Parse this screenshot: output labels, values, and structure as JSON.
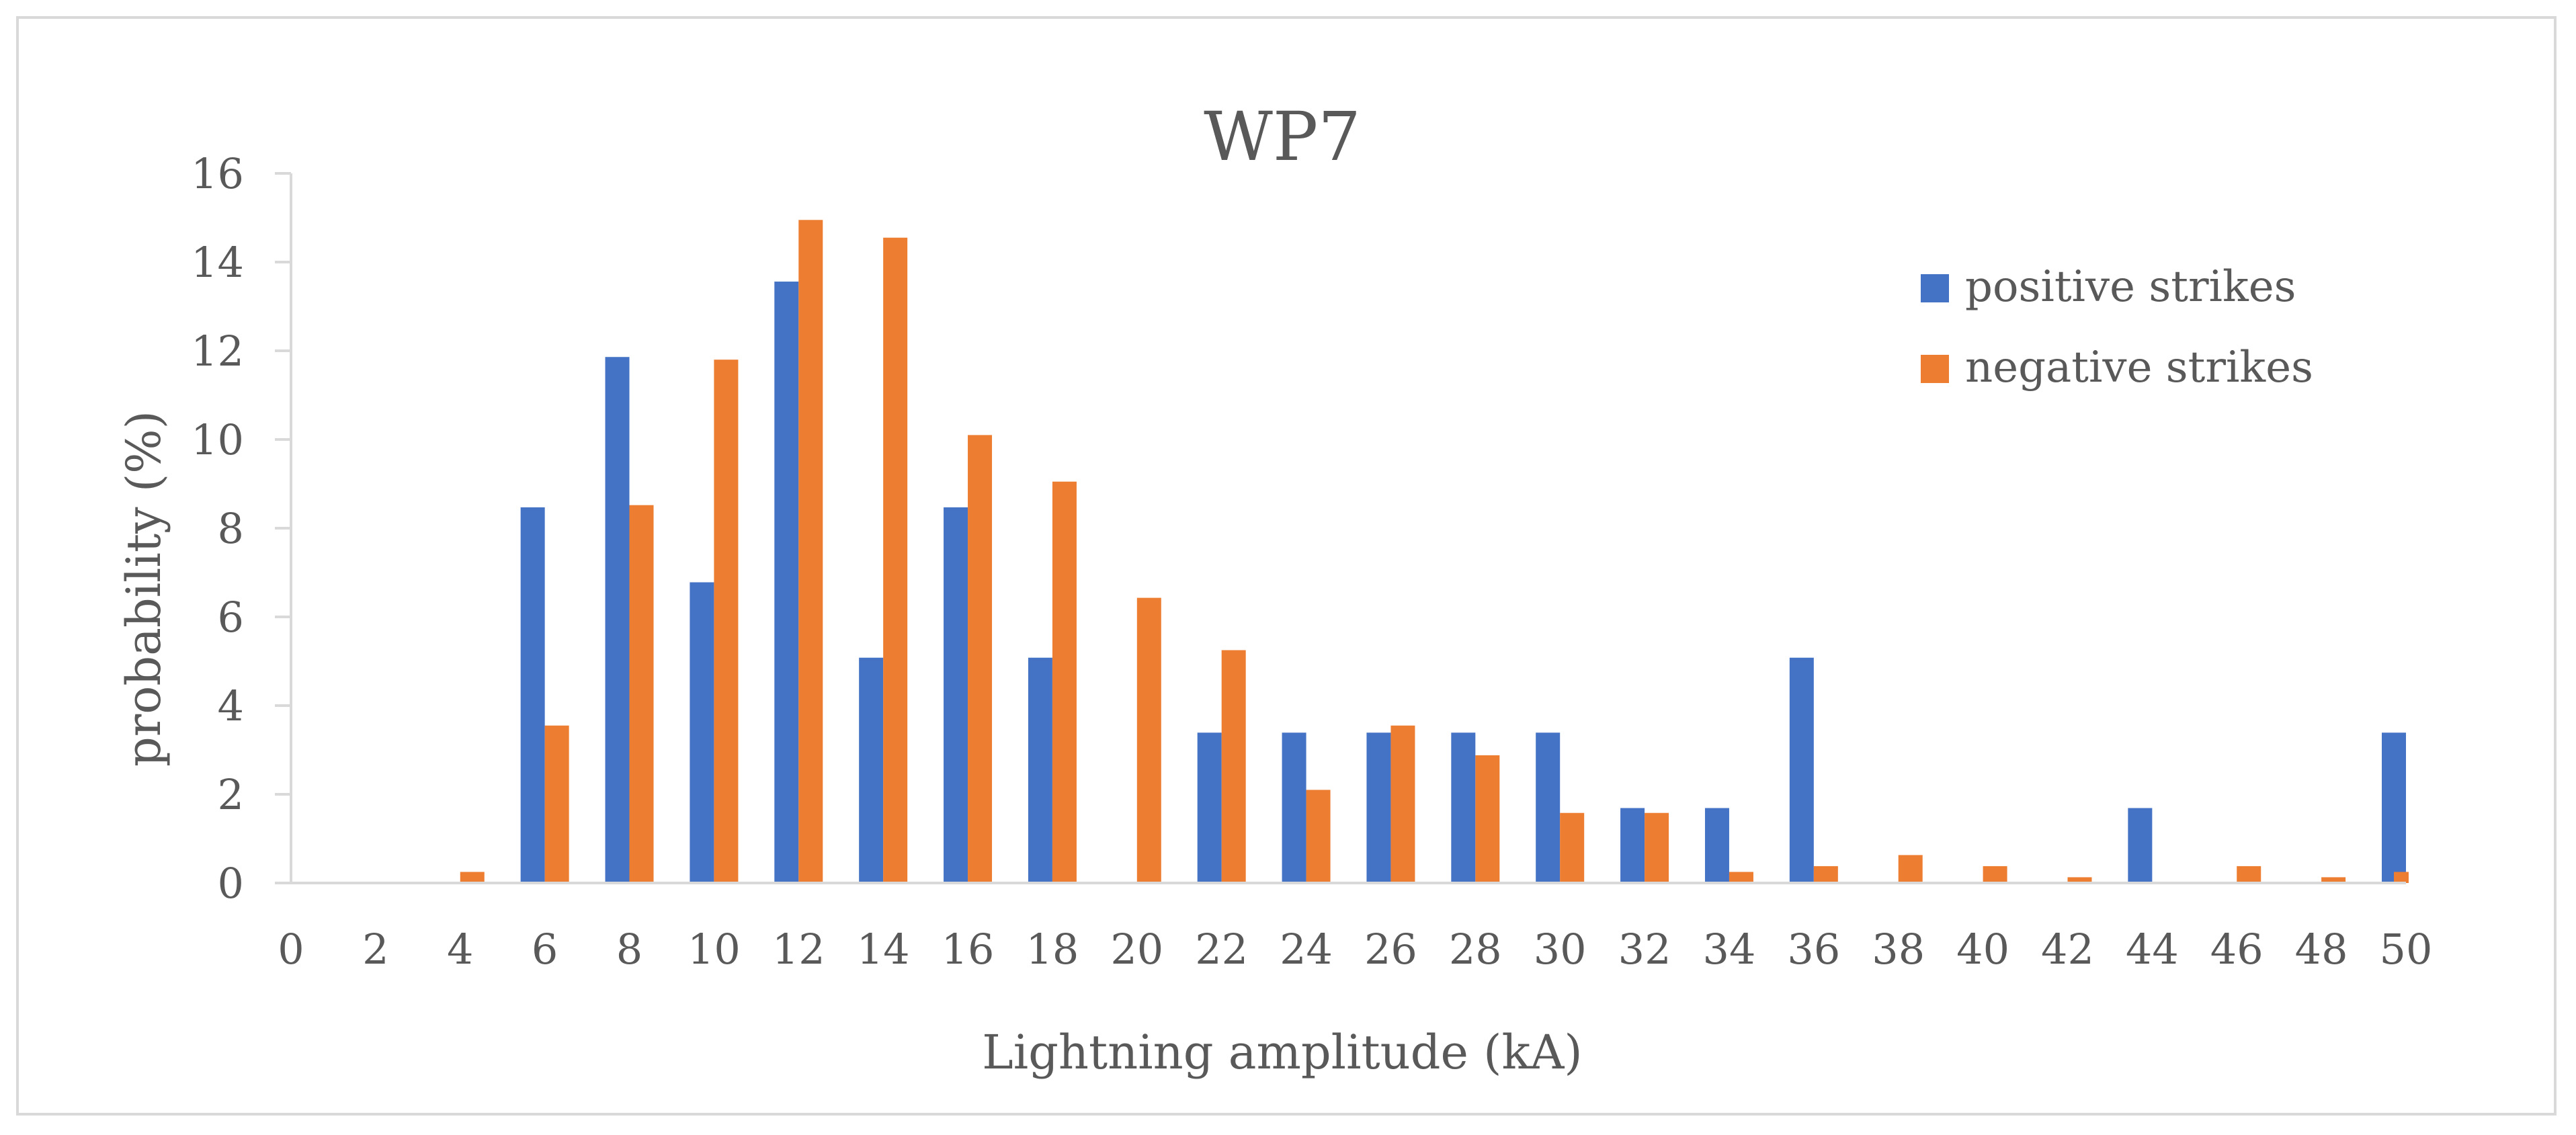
{
  "chart_data": {
    "type": "bar",
    "title": "WP7",
    "xlabel": "Lightning amplitude (kA)",
    "ylabel": "probability (%)",
    "ylim": [
      0,
      16
    ],
    "yticks": [
      0,
      2,
      4,
      6,
      8,
      10,
      12,
      14,
      16
    ],
    "categories": [
      "0",
      "2",
      "4",
      "6",
      "8",
      "10",
      "12",
      "14",
      "16",
      "18",
      "20",
      "22",
      "24",
      "26",
      "28",
      "30",
      "32",
      "34",
      "36",
      "38",
      "40",
      "42",
      "44",
      "46",
      "48",
      "50"
    ],
    "legend_position": "top-right",
    "series": [
      {
        "name": "positive strikes",
        "color": "#4472c4",
        "values": [
          0,
          0,
          0,
          8.47,
          11.86,
          6.78,
          13.56,
          5.08,
          8.47,
          5.08,
          0,
          3.39,
          3.39,
          3.39,
          3.39,
          3.39,
          1.69,
          1.69,
          5.08,
          0,
          0,
          0,
          1.69,
          0,
          0,
          3.39
        ]
      },
      {
        "name": "negative strikes",
        "color": "#ed7d31",
        "values": [
          0,
          0,
          0.25,
          3.55,
          8.52,
          11.8,
          14.95,
          14.55,
          10.1,
          9.05,
          6.43,
          5.25,
          2.1,
          3.55,
          2.88,
          1.58,
          1.58,
          0.25,
          0.38,
          0.63,
          0.38,
          0.13,
          0,
          0.38,
          0.13,
          0.25
        ]
      }
    ]
  }
}
